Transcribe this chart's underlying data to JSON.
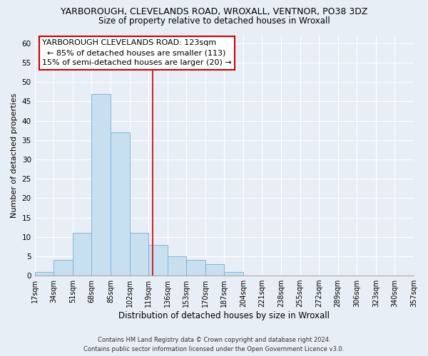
{
  "title": "YARBOROUGH, CLEVELANDS ROAD, WROXALL, VENTNOR, PO38 3DZ",
  "subtitle": "Size of property relative to detached houses in Wroxall",
  "xlabel": "Distribution of detached houses by size in Wroxall",
  "ylabel": "Number of detached properties",
  "bin_edges": [
    17,
    34,
    51,
    68,
    85,
    102,
    119,
    136,
    153,
    170,
    187,
    204,
    221,
    238,
    255,
    272,
    289,
    306,
    323,
    340,
    357
  ],
  "bar_heights": [
    1,
    4,
    11,
    47,
    37,
    11,
    8,
    5,
    4,
    3,
    1,
    0,
    0,
    0,
    0,
    0,
    0,
    0,
    0,
    0
  ],
  "bar_color": "#c8dff0",
  "bar_edge_color": "#7aadce",
  "vline_x": 123,
  "vline_color": "#cc0000",
  "ylim": [
    0,
    62
  ],
  "yticks": [
    0,
    5,
    10,
    15,
    20,
    25,
    30,
    35,
    40,
    45,
    50,
    55,
    60
  ],
  "annotation_title": "YARBOROUGH CLEVELANDS ROAD: 123sqm",
  "annotation_line1": "← 85% of detached houses are smaller (113)",
  "annotation_line2": "15% of semi-detached houses are larger (20) →",
  "annotation_box_color": "#ffffff",
  "annotation_box_edge": "#cc0000",
  "bg_color": "#e8eef5",
  "plot_bg_color": "#e8eef5",
  "footer_line1": "Contains HM Land Registry data © Crown copyright and database right 2024.",
  "footer_line2": "Contains public sector information licensed under the Open Government Licence v3.0.",
  "title_fontsize": 9,
  "subtitle_fontsize": 8.5,
  "tick_label_fontsize": 7,
  "ylabel_fontsize": 8,
  "xlabel_fontsize": 8.5,
  "annotation_fontsize": 8,
  "footer_fontsize": 6
}
